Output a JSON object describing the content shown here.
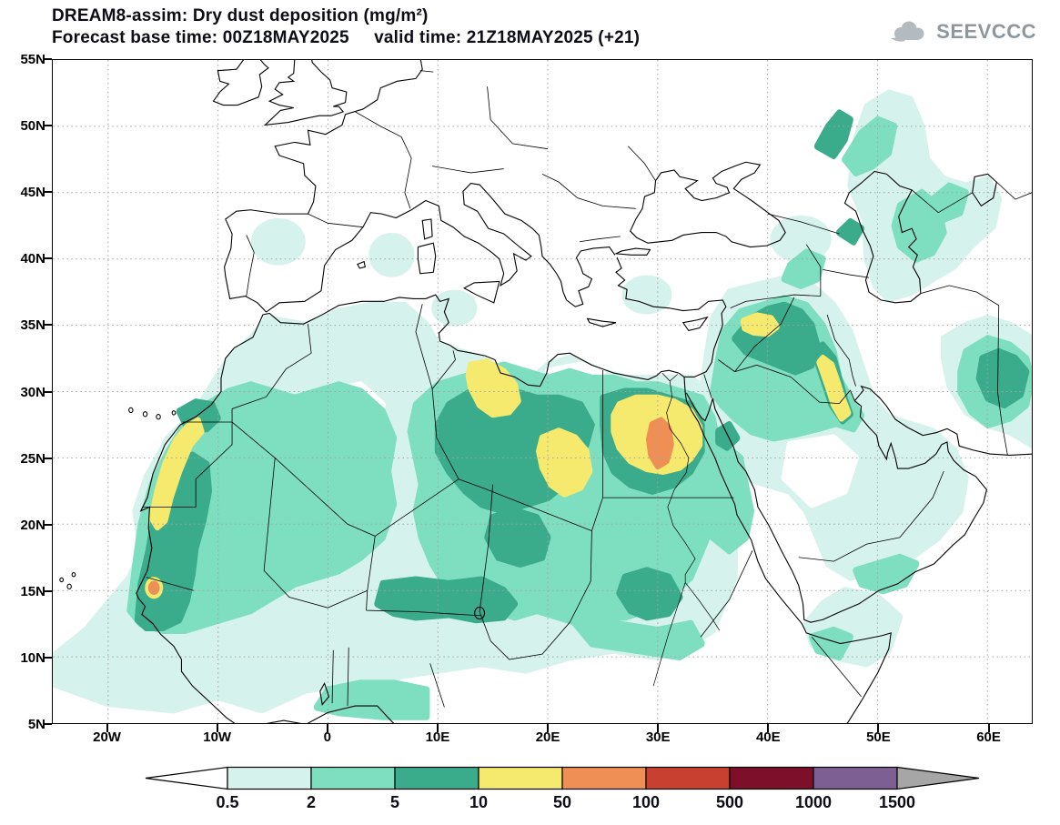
{
  "header": {
    "title_line1": "DREAM8-assim: Dry dust deposition (mg/m²)",
    "title_line2": "Forecast base time: 00Z18MAY2025     valid time: 21Z18MAY2025 (+21)"
  },
  "logo": {
    "text": "SEEVCCC"
  },
  "axes": {
    "lat_min": 5,
    "lat_max": 55,
    "lon_min": -25,
    "lon_max": 64,
    "lat_ticks": [
      {
        "label": "55N",
        "value": 55
      },
      {
        "label": "50N",
        "value": 50
      },
      {
        "label": "45N",
        "value": 45
      },
      {
        "label": "40N",
        "value": 40
      },
      {
        "label": "35N",
        "value": 35
      },
      {
        "label": "30N",
        "value": 30
      },
      {
        "label": "25N",
        "value": 25
      },
      {
        "label": "20N",
        "value": 20
      },
      {
        "label": "15N",
        "value": 15
      },
      {
        "label": "10N",
        "value": 10
      },
      {
        "label": "5N",
        "value": 5
      }
    ],
    "lon_ticks": [
      {
        "label": "20W",
        "value": -20
      },
      {
        "label": "10W",
        "value": -10
      },
      {
        "label": "0",
        "value": 0
      },
      {
        "label": "10E",
        "value": 10
      },
      {
        "label": "20E",
        "value": 20
      },
      {
        "label": "30E",
        "value": 30
      },
      {
        "label": "40E",
        "value": 40
      },
      {
        "label": "50E",
        "value": 50
      },
      {
        "label": "60E",
        "value": 60
      }
    ]
  },
  "colorbar": {
    "labels": [
      "0.5",
      "2",
      "5",
      "10",
      "50",
      "100",
      "500",
      "1000",
      "1500"
    ],
    "colors": [
      "#ffffff",
      "#d6f2ec",
      "#7edec0",
      "#3aab8b",
      "#f5e96e",
      "#ef8f55",
      "#c8402f",
      "#7d0f2b",
      "#7e5f94",
      "#a6a6a6"
    ]
  },
  "chart_data": {
    "type": "filled_contour_map",
    "title": "DREAM8-assim: Dry dust deposition (mg/m²)",
    "model": "DREAM8-assim",
    "variable": "Dry dust deposition",
    "units": "mg/m²",
    "forecast_base_time": "00Z18MAY2025",
    "valid_time": "21Z18MAY2025",
    "forecast_hour": "+21",
    "extent": {
      "lon_min": -25,
      "lon_max": 64,
      "lat_min": 5,
      "lat_max": 55
    },
    "projection": "lat-lon (plate carree)",
    "grid": "dotted graticule every 5 deg lat / 10 deg lon",
    "legend_position": "bottom, horizontal arrow colorbar",
    "contour_levels_mg_m2": [
      0.5,
      2,
      5,
      10,
      50,
      100,
      500,
      1000,
      1500
    ],
    "level_colors": [
      "#ffffff",
      "#d6f2ec",
      "#7edec0",
      "#3aab8b",
      "#f5e96e",
      "#ef8f55",
      "#c8402f",
      "#7d0f2b",
      "#7e5f94",
      "#a6a6a6"
    ],
    "features": [
      {
        "region": "Western Sahara / Mauritania coastal strip",
        "value_range_mg_m2": "10-50"
      },
      {
        "region": "Senegal (local spot)",
        "value_range_mg_m2": "50-100"
      },
      {
        "region": "Central coastal Libya",
        "value_range_mg_m2": "10-50"
      },
      {
        "region": "SE Libya / NW Sudan",
        "value_range_mg_m2": "10-50"
      },
      {
        "region": "Southern Egypt / Northern Sudan",
        "value_range_mg_m2": "50-100 (orange core near 30E, 26N)"
      },
      {
        "region": "NE Syria / Northern Iraq",
        "value_range_mg_m2": "10-50"
      },
      {
        "region": "SE Iraq / Kuwait border strip",
        "value_range_mg_m2": "10-50"
      },
      {
        "region": "Sahel belt Niger-Chad-Sudan",
        "value_range_mg_m2": "5-10"
      },
      {
        "region": "North Caspian lowlands and east of Caspian",
        "value_range_mg_m2": "2-10"
      },
      {
        "region": "Eastern Iran",
        "value_range_mg_m2": "5-10"
      },
      {
        "region": "Broad Sahara, Arabia, W Atlantic offshore",
        "value_range_mg_m2": "0.5-5"
      }
    ]
  }
}
